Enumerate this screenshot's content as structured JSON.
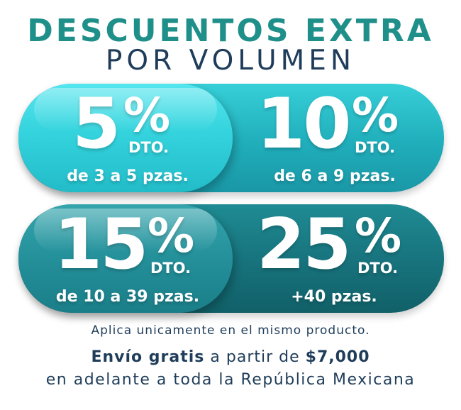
{
  "header": {
    "title_line1": "DESCUENTOS EXTRA",
    "title_line2": "POR VOLUMEN"
  },
  "colors": {
    "teal_title": "#1f8f8a",
    "navy_text": "#1f3d5a",
    "bright_teal": "#34d3dd",
    "dark_teal": "#17727c",
    "white": "#ffffff"
  },
  "offers": [
    {
      "number": "5",
      "percent": "%",
      "dto": "DTO.",
      "range": "de 3 a 5 pzas."
    },
    {
      "number": "10",
      "percent": "%",
      "dto": "DTO.",
      "range": "de 6 a 9 pzas."
    },
    {
      "number": "15",
      "percent": "%",
      "dto": "DTO.",
      "range": "de 10 a 39 pzas."
    },
    {
      "number": "25",
      "percent": "%",
      "dto": "DTO.",
      "range": "+40 pzas."
    }
  ],
  "footer": {
    "line1": "Aplica unicamente en el mismo producto.",
    "line2_bold1": "Envío gratis",
    "line2_mid": " a partir de ",
    "line2_bold2": "$7,000",
    "line3": "en adelante a toda la República Mexicana"
  }
}
